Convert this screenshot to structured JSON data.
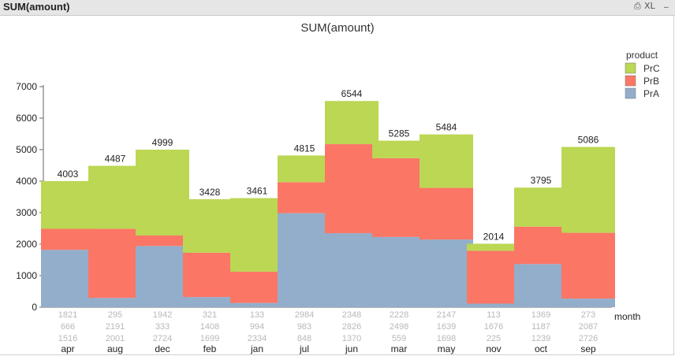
{
  "window": {
    "title": "SUM(amount)",
    "buttons": {
      "print": "⎙",
      "excel": "XL",
      "minimize": "_"
    }
  },
  "colors": {
    "PrA": "#92aecb",
    "PrB": "#fc7666",
    "PrC": "#bbd753"
  },
  "chart_data": {
    "type": "bar",
    "stacked": true,
    "title": "SUM(amount)",
    "xlabel": "month",
    "ylabel": "",
    "ylim": [
      0,
      7000
    ],
    "yticks": [
      0,
      1000,
      2000,
      3000,
      4000,
      5000,
      6000,
      7000
    ],
    "legend_title": "product",
    "legend_position": "top-right",
    "categories": [
      "apr",
      "aug",
      "dec",
      "feb",
      "jan",
      "jul",
      "jun",
      "mar",
      "may",
      "nov",
      "oct",
      "sep"
    ],
    "series": [
      {
        "name": "PrA",
        "values": [
          1821,
          295,
          1942,
          321,
          133,
          2984,
          2348,
          2228,
          2147,
          113,
          1369,
          273
        ]
      },
      {
        "name": "PrB",
        "values": [
          666,
          2191,
          333,
          1408,
          994,
          983,
          2826,
          2498,
          1639,
          1676,
          1187,
          2087
        ]
      },
      {
        "name": "PrC",
        "values": [
          1516,
          2001,
          2724,
          1699,
          2334,
          848,
          1370,
          559,
          1698,
          225,
          1239,
          2726
        ]
      }
    ],
    "totals": [
      4003,
      4487,
      4999,
      3428,
      3461,
      4815,
      6544,
      5285,
      5484,
      2014,
      3795,
      5086
    ]
  }
}
